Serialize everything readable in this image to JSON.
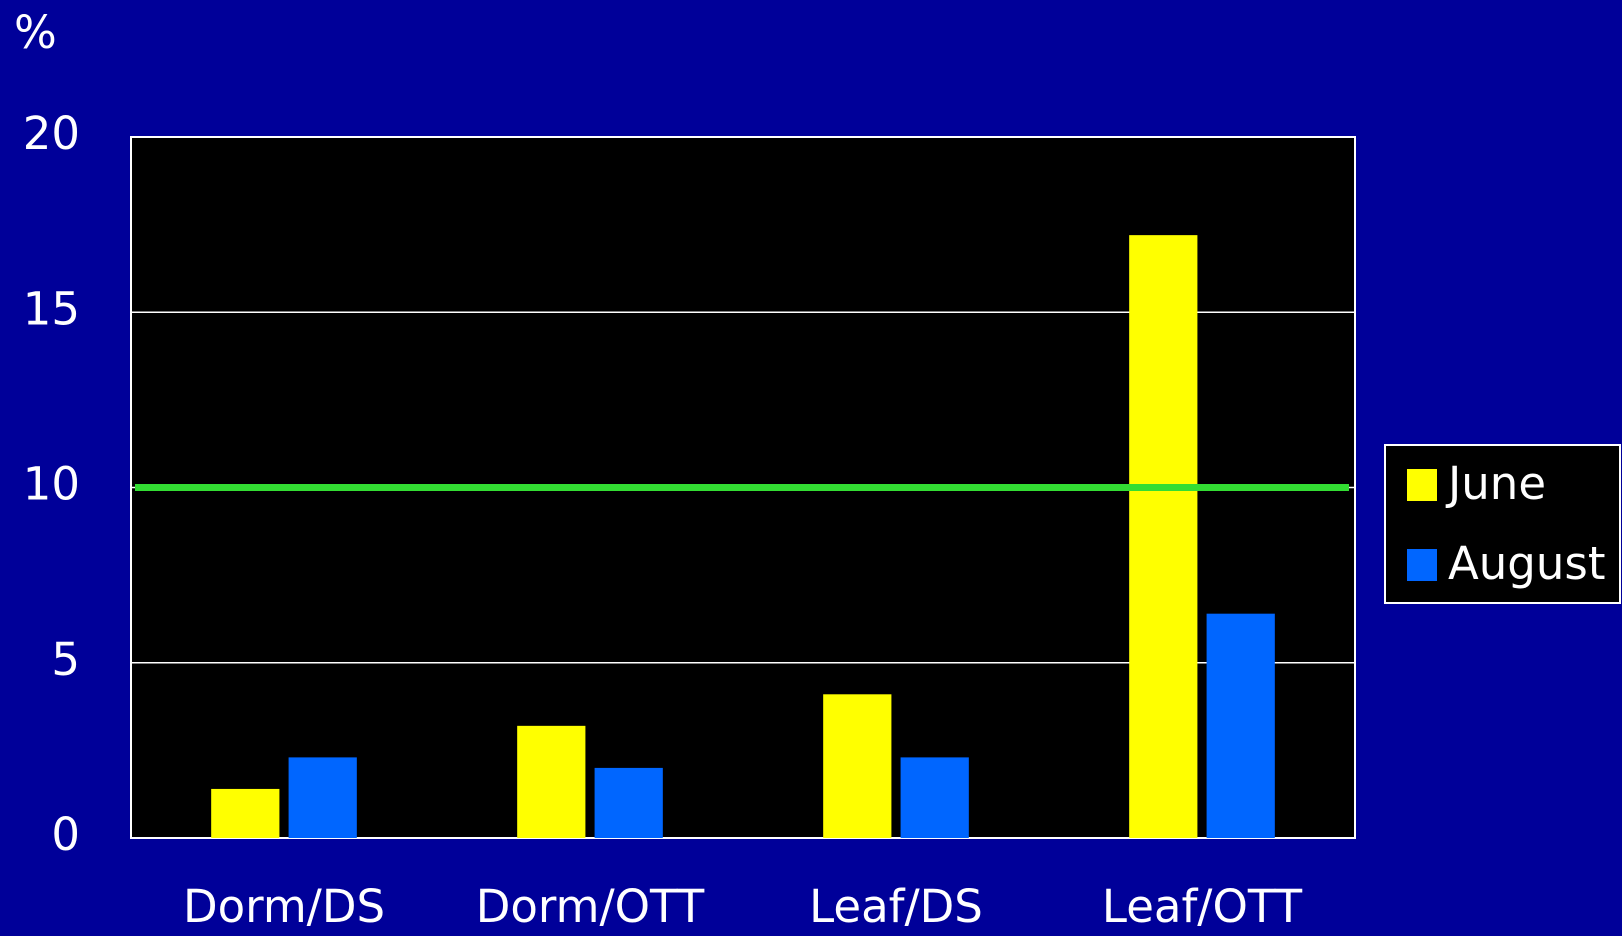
{
  "chart_data": {
    "type": "bar",
    "y_label": "%",
    "categories": [
      "Dorm/DS",
      "Dorm/OTT",
      "Leaf/DS",
      "Leaf/OTT"
    ],
    "series": [
      {
        "name": "June",
        "color": "#ffff00",
        "values": [
          1.4,
          3.2,
          4.1,
          17.2
        ]
      },
      {
        "name": "August",
        "color": "#0066ff",
        "values": [
          2.3,
          2.0,
          2.3,
          6.4
        ]
      }
    ],
    "reference_line": 10,
    "reference_color": "#33dd33",
    "ylim": [
      0,
      20
    ],
    "yticks": [
      0,
      5,
      10,
      15,
      20
    ],
    "grid": true,
    "legend": "right"
  }
}
